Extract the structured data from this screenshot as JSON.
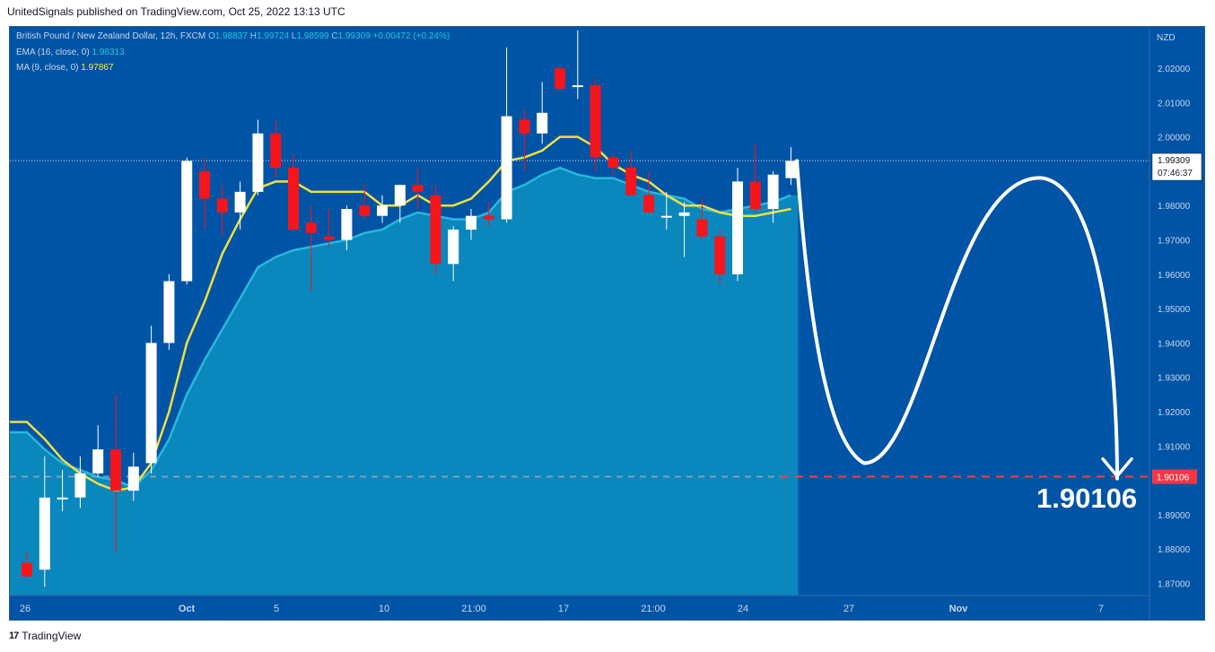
{
  "header": {
    "published": "UnitedSignals published on TradingView.com, Oct 25, 2022 13:13 UTC"
  },
  "footer": {
    "brand": "TradingView",
    "logo": "17"
  },
  "legend": {
    "symbol": "British Pound / New Zealand Dollar, 12h, FXCM",
    "o_label": "O",
    "o": "1.98837",
    "h_label": "H",
    "h": "1.99724",
    "l_label": "L",
    "l": "1.98599",
    "c_label": "C",
    "c": "1.99309",
    "change": "+0.00472 (+0.24%)",
    "ema_label": "EMA (16, close, 0)",
    "ema_value": "1.98313",
    "ma_label": "MA (9, close, 0)",
    "ma_value": "1.97867"
  },
  "price_axis": {
    "currency": "NZD",
    "ticks": [
      "2.02000",
      "2.01000",
      "2.00000",
      "1.98000",
      "1.97000",
      "1.96000",
      "1.95000",
      "1.94000",
      "1.93000",
      "1.92000",
      "1.91000",
      "1.90000",
      "1.89000",
      "1.88000",
      "1.87000"
    ],
    "last_price": "1.99309",
    "countdown": "07:46:37",
    "target_label": "1.90106"
  },
  "time_axis": {
    "ticks": [
      "26",
      "Oct",
      "5",
      "10",
      "21:00",
      "17",
      "21:00",
      "24",
      "27",
      "Nov",
      "7"
    ]
  },
  "annotation": {
    "target_text": "1.90106"
  },
  "colors": {
    "background": "#0054a6",
    "bull": "#ffffff",
    "bear": "#f5151c",
    "ema": "#2cc0e0",
    "ma": "#f0e040",
    "area": "#0a87bd",
    "target_line": "#ff3b3b"
  },
  "chart_data": {
    "type": "candlestick",
    "title": "British Pound / New Zealand Dollar, 12h, FXCM",
    "y_unit": "NZD",
    "ylim": [
      1.865,
      2.035
    ],
    "candles": [
      {
        "o": 1.876,
        "h": 1.879,
        "l": 1.872,
        "c": 1.872
      },
      {
        "o": 1.874,
        "h": 1.907,
        "l": 1.869,
        "c": 1.895
      },
      {
        "o": 1.895,
        "h": 1.903,
        "l": 1.891,
        "c": 1.895
      },
      {
        "o": 1.895,
        "h": 1.907,
        "l": 1.892,
        "c": 1.902
      },
      {
        "o": 1.902,
        "h": 1.916,
        "l": 1.901,
        "c": 1.909
      },
      {
        "o": 1.909,
        "h": 1.925,
        "l": 1.879,
        "c": 1.897
      },
      {
        "o": 1.897,
        "h": 1.908,
        "l": 1.894,
        "c": 1.904
      },
      {
        "o": 1.905,
        "h": 1.945,
        "l": 1.902,
        "c": 1.94
      },
      {
        "o": 1.94,
        "h": 1.96,
        "l": 1.938,
        "c": 1.958
      },
      {
        "o": 1.958,
        "h": 1.994,
        "l": 1.957,
        "c": 1.993
      },
      {
        "o": 1.99,
        "h": 1.994,
        "l": 1.973,
        "c": 1.982
      },
      {
        "o": 1.982,
        "h": 1.986,
        "l": 1.971,
        "c": 1.978
      },
      {
        "o": 1.978,
        "h": 1.987,
        "l": 1.973,
        "c": 1.984
      },
      {
        "o": 1.984,
        "h": 2.005,
        "l": 1.983,
        "c": 2.001
      },
      {
        "o": 2.001,
        "h": 2.005,
        "l": 1.988,
        "c": 1.991
      },
      {
        "o": 1.991,
        "h": 1.995,
        "l": 1.974,
        "c": 1.973
      },
      {
        "o": 1.975,
        "h": 1.98,
        "l": 1.955,
        "c": 1.972
      },
      {
        "o": 1.971,
        "h": 1.979,
        "l": 1.968,
        "c": 1.97
      },
      {
        "o": 1.97,
        "h": 1.98,
        "l": 1.967,
        "c": 1.979
      },
      {
        "o": 1.98,
        "h": 1.986,
        "l": 1.976,
        "c": 1.977
      },
      {
        "o": 1.977,
        "h": 1.983,
        "l": 1.975,
        "c": 1.98
      },
      {
        "o": 1.98,
        "h": 1.986,
        "l": 1.975,
        "c": 1.986
      },
      {
        "o": 1.986,
        "h": 1.991,
        "l": 1.979,
        "c": 1.984
      },
      {
        "o": 1.983,
        "h": 1.986,
        "l": 1.96,
        "c": 1.963
      },
      {
        "o": 1.963,
        "h": 1.974,
        "l": 1.958,
        "c": 1.973
      },
      {
        "o": 1.973,
        "h": 1.979,
        "l": 1.97,
        "c": 1.977
      },
      {
        "o": 1.977,
        "h": 1.981,
        "l": 1.974,
        "c": 1.976
      },
      {
        "o": 1.976,
        "h": 2.026,
        "l": 1.975,
        "c": 2.006
      },
      {
        "o": 2.005,
        "h": 2.008,
        "l": 1.99,
        "c": 2.001
      },
      {
        "o": 2.001,
        "h": 2.016,
        "l": 1.998,
        "c": 2.007
      },
      {
        "o": 2.02,
        "h": 2.02,
        "l": 2.014,
        "c": 2.014
      },
      {
        "o": 2.015,
        "h": 2.031,
        "l": 2.011,
        "c": 2.015
      },
      {
        "o": 2.015,
        "h": 2.017,
        "l": 1.99,
        "c": 1.994
      },
      {
        "o": 1.994,
        "h": 1.995,
        "l": 1.989,
        "c": 1.991
      },
      {
        "o": 1.991,
        "h": 1.996,
        "l": 1.983,
        "c": 1.983
      },
      {
        "o": 1.983,
        "h": 1.99,
        "l": 1.978,
        "c": 1.978
      },
      {
        "o": 1.977,
        "h": 1.984,
        "l": 1.973,
        "c": 1.977
      },
      {
        "o": 1.977,
        "h": 1.981,
        "l": 1.965,
        "c": 1.978
      },
      {
        "o": 1.976,
        "h": 1.982,
        "l": 1.97,
        "c": 1.971
      },
      {
        "o": 1.971,
        "h": 1.973,
        "l": 1.957,
        "c": 1.96
      },
      {
        "o": 1.96,
        "h": 1.991,
        "l": 1.958,
        "c": 1.987
      },
      {
        "o": 1.987,
        "h": 1.998,
        "l": 1.978,
        "c": 1.979
      },
      {
        "o": 1.979,
        "h": 1.99,
        "l": 1.975,
        "c": 1.989
      },
      {
        "o": 1.988,
        "h": 1.997,
        "l": 1.986,
        "c": 1.993
      }
    ],
    "ema": [
      1.914,
      1.909,
      1.905,
      1.903,
      1.901,
      1.9,
      1.898,
      1.903,
      1.912,
      1.925,
      1.935,
      1.944,
      1.953,
      1.962,
      1.965,
      1.967,
      1.968,
      1.969,
      1.97,
      1.972,
      1.973,
      1.976,
      1.978,
      1.977,
      1.976,
      1.976,
      1.978,
      1.984,
      1.986,
      1.989,
      1.991,
      1.989,
      1.988,
      1.988,
      1.986,
      1.984,
      1.983,
      1.982,
      1.979,
      1.978,
      1.979,
      1.98,
      1.981,
      1.983
    ],
    "ma": [
      1.917,
      1.912,
      1.906,
      1.902,
      1.899,
      1.897,
      1.898,
      1.905,
      1.92,
      1.94,
      1.952,
      1.966,
      1.976,
      1.985,
      1.987,
      1.987,
      1.984,
      1.984,
      1.984,
      1.984,
      1.98,
      1.98,
      1.983,
      1.98,
      1.98,
      1.982,
      1.987,
      1.993,
      1.994,
      1.996,
      2.0,
      2.0,
      1.997,
      1.992,
      1.989,
      1.987,
      1.983,
      1.98,
      1.98,
      1.978,
      1.977,
      1.977,
      1.978,
      1.979
    ],
    "target_price": 1.90106,
    "last_price": 1.99309,
    "forecast_path": [
      1.993,
      1.911,
      1.905,
      1.988,
      1.901
    ],
    "y_ticks": [
      2.02,
      2.01,
      2.0,
      1.98,
      1.97,
      1.96,
      1.95,
      1.94,
      1.93,
      1.92,
      1.91,
      1.9,
      1.89,
      1.88,
      1.87
    ],
    "x_ticks": [
      "26",
      "Oct",
      "5",
      "10",
      "21:00",
      "17",
      "21:00",
      "24",
      "27",
      "Nov",
      "7"
    ]
  }
}
